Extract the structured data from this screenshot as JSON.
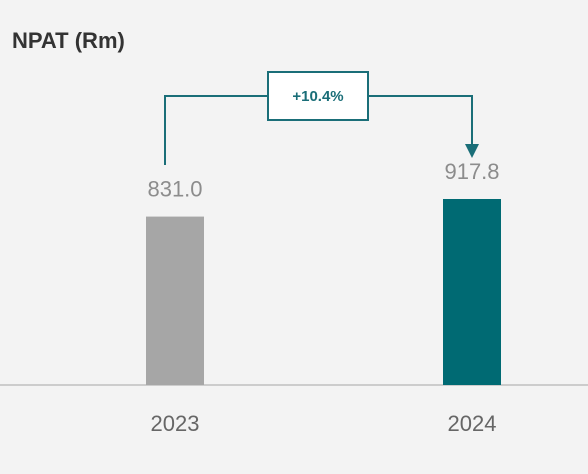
{
  "chart_data": {
    "type": "bar",
    "title": "NPAT (Rm)",
    "categories": [
      "2023",
      "2024"
    ],
    "values": [
      831.0,
      917.8
    ],
    "value_labels": [
      "831.0",
      "917.8"
    ],
    "colors": [
      "#a6a6a6",
      "#006a73"
    ],
    "annotation": "+10.4%"
  }
}
